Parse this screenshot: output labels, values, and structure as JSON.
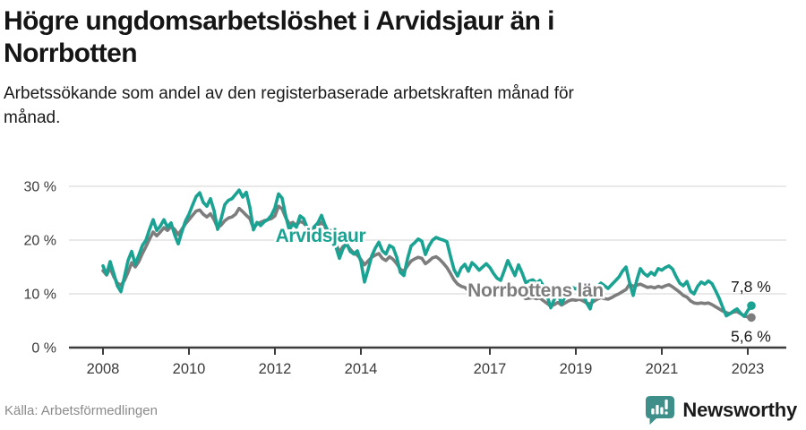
{
  "header": {
    "title": "Högre ungdomsarbetslöshet i Arvidsjaur än i Norrbotten",
    "subtitle": "Arbetssökande som andel av den registerbaserade arbetskraften månad för månad."
  },
  "footer": {
    "source": "Källa: Arbetsförmedlingen",
    "brand": "Newsworthy",
    "brand_icon": "speech-bubble-bar-chart-icon"
  },
  "colors": {
    "arvidsjaur": "#1aa292",
    "norrbotten": "#7d7d7d",
    "grid": "#dcdcdc",
    "axis": "#3c3c3c",
    "tick_text": "#3a3a3a",
    "value_text": "#1a1a1a",
    "brand": "#3e8e8a",
    "background": "#ffffff"
  },
  "chart_data": {
    "type": "line",
    "title": "Högre ungdomsarbetslöshet i Arvidsjaur än i Norrbotten",
    "subtitle": "Arbetssökande som andel av den registerbaserade arbetskraften månad för månad.",
    "x_unit": "month",
    "x_start": "2008-01",
    "x_end": "2023-02",
    "x_ticks": [
      2008,
      2010,
      2012,
      2014,
      2017,
      2019,
      2021,
      2023
    ],
    "x_tick_labels": [
      "2008",
      "2010",
      "2012",
      "2014",
      "2017",
      "2019",
      "2021",
      "2023"
    ],
    "y_ticks": [
      0,
      10,
      20,
      30
    ],
    "y_tick_labels": [
      "0 %",
      "10 %",
      "20 %",
      "30 %"
    ],
    "ylim": [
      0,
      33
    ],
    "grid": "horizontal",
    "legend": "inline-labels",
    "series": [
      {
        "name": "Norrbottens län",
        "color": "#7d7d7d",
        "end_label": "5,6 %",
        "end_value": 5.6,
        "values": [
          14.3,
          13.5,
          14.8,
          13.2,
          12.0,
          11.6,
          12.5,
          14.0,
          15.8,
          15.0,
          16.0,
          17.5,
          18.8,
          20.2,
          21.5,
          20.8,
          21.5,
          22.3,
          21.8,
          22.5,
          22.0,
          21.0,
          22.0,
          23.0,
          23.8,
          24.6,
          25.4,
          25.6,
          24.8,
          24.3,
          24.9,
          23.8,
          22.3,
          22.8,
          23.6,
          24.1,
          24.3,
          24.8,
          25.9,
          25.3,
          24.6,
          24.0,
          22.2,
          23.0,
          23.3,
          23.6,
          23.8,
          24.0,
          24.5,
          26.3,
          25.8,
          24.2,
          23.0,
          23.3,
          22.7,
          23.5,
          23.2,
          22.4,
          22.0,
          22.3,
          22.7,
          23.3,
          22.4,
          21.3,
          21.0,
          19.3,
          17.8,
          18.8,
          19.2,
          18.3,
          17.6,
          17.2,
          16.4,
          15.4,
          16.1,
          16.8,
          17.2,
          17.5,
          16.6,
          16.2,
          16.9,
          16.4,
          15.6,
          14.6,
          14.2,
          15.2,
          16.1,
          16.5,
          16.8,
          16.6,
          15.6,
          16.1,
          16.7,
          16.9,
          16.4,
          15.7,
          14.9,
          13.8,
          12.6,
          11.8,
          11.4,
          11.2,
          10.6,
          10.9,
          11.1,
          10.8,
          10.6,
          10.9,
          10.7,
          10.3,
          9.9,
          9.7,
          10.0,
          10.4,
          9.9,
          9.5,
          9.9,
          9.6,
          9.1,
          9.2,
          9.3,
          9.1,
          9.2,
          8.7,
          8.2,
          7.7,
          8.0,
          8.4,
          7.9,
          8.3,
          8.7,
          8.9,
          8.8,
          9.0,
          8.7,
          8.3,
          8.1,
          8.6,
          9.0,
          9.3,
          9.1,
          9.0,
          9.3,
          9.7,
          10.0,
          10.4,
          10.8,
          11.8,
          11.4,
          11.6,
          11.8,
          11.5,
          11.2,
          11.3,
          11.1,
          11.4,
          11.2,
          11.5,
          11.7,
          11.3,
          10.8,
          10.3,
          9.7,
          9.4,
          8.7,
          8.3,
          8.2,
          8.3,
          8.2,
          8.3,
          8.0,
          7.6,
          7.2,
          6.8,
          6.5,
          6.3,
          6.6,
          6.7,
          6.3,
          5.9,
          5.7,
          5.6
        ]
      },
      {
        "name": "Arvidsjaur",
        "color": "#1aa292",
        "end_label": "7,8 %",
        "end_value": 7.8,
        "values": [
          15.2,
          13.6,
          16.0,
          13.8,
          11.5,
          10.4,
          13.2,
          16.2,
          17.9,
          15.5,
          17.2,
          19.0,
          20.0,
          22.0,
          23.8,
          21.8,
          22.6,
          23.8,
          22.4,
          23.2,
          21.0,
          19.3,
          21.5,
          23.5,
          24.8,
          26.5,
          28.1,
          28.8,
          27.0,
          26.3,
          27.7,
          25.5,
          22.0,
          24.0,
          26.6,
          27.4,
          27.7,
          28.5,
          29.3,
          28.0,
          28.9,
          26.1,
          21.9,
          23.3,
          22.7,
          23.4,
          23.8,
          24.6,
          26.0,
          28.6,
          27.8,
          24.5,
          21.9,
          23.0,
          22.4,
          24.5,
          24.0,
          22.3,
          21.8,
          22.5,
          23.2,
          24.6,
          22.8,
          21.4,
          21.9,
          18.8,
          16.6,
          18.4,
          19.4,
          17.9,
          17.4,
          18.0,
          16.0,
          12.2,
          14.5,
          17.0,
          18.5,
          19.6,
          18.0,
          17.4,
          19.0,
          18.6,
          16.8,
          14.0,
          13.4,
          16.5,
          18.9,
          19.5,
          20.2,
          19.8,
          17.3,
          18.9,
          20.0,
          20.5,
          20.2,
          20.0,
          19.7,
          17.0,
          14.5,
          13.3,
          14.8,
          15.5,
          14.2,
          15.8,
          15.2,
          14.4,
          15.0,
          15.6,
          14.9,
          13.8,
          12.9,
          12.5,
          14.3,
          16.2,
          14.8,
          13.4,
          15.4,
          13.9,
          12.1,
          12.4,
          12.6,
          12.0,
          12.5,
          11.4,
          9.6,
          7.4,
          9.0,
          10.2,
          8.1,
          9.5,
          10.8,
          11.2,
          10.9,
          11.5,
          10.2,
          8.3,
          7.2,
          9.8,
          11.3,
          12.0,
          11.5,
          11.0,
          11.7,
          12.4,
          13.1,
          14.2,
          15.0,
          12.1,
          9.7,
          12.5,
          14.7,
          13.8,
          13.3,
          14.0,
          13.5,
          14.7,
          14.4,
          14.9,
          15.2,
          14.6,
          13.2,
          12.0,
          11.5,
          12.3,
          10.5,
          10.0,
          11.4,
          12.2,
          11.8,
          12.4,
          11.9,
          10.6,
          9.2,
          7.5,
          5.9,
          6.3,
          6.8,
          7.2,
          6.4,
          5.8,
          6.9,
          7.8
        ]
      }
    ]
  }
}
